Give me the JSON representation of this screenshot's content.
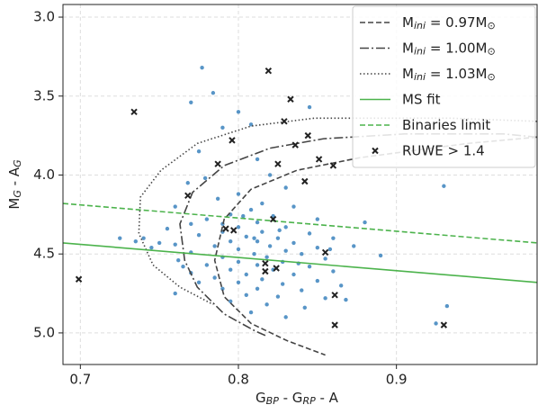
{
  "chart_data": {
    "type": "scatter",
    "xlabel": [
      "G",
      "BP",
      " - G",
      "RP",
      " - A"
    ],
    "ylabel": [
      "M",
      "G",
      " - A",
      "G"
    ],
    "xlim": [
      0.689,
      0.989
    ],
    "ylim": [
      5.2,
      2.92
    ],
    "xticks": [
      0.7,
      0.8,
      0.9
    ],
    "yticks": [
      {
        "value": 3,
        "label": "3.0"
      },
      3.5,
      {
        "value": 4,
        "label": "4.0"
      },
      4.5,
      {
        "value": 5,
        "label": "5.0"
      }
    ],
    "grid": true,
    "legend": "upper right",
    "series": [
      {
        "name": [
          "M",
          "ini",
          " = 0.97M",
          "⊙"
        ],
        "style": "dashed",
        "color": "#444444",
        "x": [
          0.989,
          0.945,
          0.877,
          0.837,
          0.808,
          0.791,
          0.785,
          0.791,
          0.808,
          0.831,
          0.855
        ],
        "y": [
          3.76,
          3.8,
          3.89,
          3.97,
          4.09,
          4.28,
          4.54,
          4.77,
          4.94,
          5.05,
          5.14
        ]
      },
      {
        "name": [
          "M",
          "ini",
          " = 1.00M",
          "⊙"
        ],
        "style": "dashdot",
        "color": "#444444",
        "x": [
          0.989,
          0.968,
          0.905,
          0.854,
          0.82,
          0.791,
          0.771,
          0.763,
          0.766,
          0.774,
          0.791,
          0.811,
          0.818
        ],
        "y": [
          3.76,
          3.74,
          3.74,
          3.77,
          3.83,
          3.94,
          4.11,
          4.31,
          4.54,
          4.71,
          4.88,
          4.99,
          5.02
        ]
      },
      {
        "name": [
          "M",
          "ini",
          " = 1.03M",
          "⊙"
        ],
        "style": "dotted",
        "color": "#444444",
        "x": [
          0.989,
          0.934,
          0.848,
          0.808,
          0.774,
          0.751,
          0.738,
          0.737,
          0.746,
          0.763,
          0.784
        ],
        "y": [
          3.66,
          3.64,
          3.64,
          3.69,
          3.8,
          3.97,
          4.14,
          4.37,
          4.57,
          4.71,
          4.82
        ]
      },
      {
        "name": [
          "MS fit"
        ],
        "style": "solid",
        "color": "#4cb34c",
        "x": [
          0.689,
          0.989
        ],
        "y": [
          4.43,
          4.68
        ]
      },
      {
        "name": [
          "Binaries limit"
        ],
        "style": "dashed",
        "color": "#4cb34c",
        "x": [
          0.689,
          0.989
        ],
        "y": [
          4.18,
          4.43
        ]
      },
      {
        "name": [
          "RUWE > 1.4"
        ],
        "style": "marker-x",
        "color": "#222222",
        "x": [
          0.699,
          0.734,
          0.819,
          0.833,
          0.829,
          0.796,
          0.787,
          0.836,
          0.844,
          0.825,
          0.851,
          0.86,
          0.842,
          0.768,
          0.822,
          0.792,
          0.797,
          0.855,
          0.817,
          0.817,
          0.824,
          0.861,
          0.861,
          0.93
        ],
        "y": [
          4.66,
          3.6,
          3.34,
          3.52,
          3.66,
          3.78,
          3.93,
          3.81,
          3.75,
          3.93,
          3.9,
          3.94,
          4.04,
          4.13,
          4.28,
          4.34,
          4.35,
          4.49,
          4.56,
          4.61,
          4.59,
          4.76,
          4.95,
          4.95
        ]
      },
      {
        "style": "marker-dot",
        "color": "#3b82bd",
        "x": [
          0.777,
          0.784,
          0.77,
          0.8,
          0.845,
          0.808,
          0.79,
          0.775,
          0.812,
          0.82,
          0.779,
          0.768,
          0.83,
          0.8,
          0.93,
          0.787,
          0.815,
          0.76,
          0.808,
          0.835,
          0.795,
          0.822,
          0.78,
          0.85,
          0.812,
          0.77,
          0.8,
          0.83,
          0.755,
          0.79,
          0.815,
          0.845,
          0.725,
          0.74,
          0.775,
          0.805,
          0.825,
          0.86,
          0.795,
          0.812,
          0.835,
          0.76,
          0.785,
          0.82,
          0.85,
          0.745,
          0.8,
          0.83,
          0.77,
          0.81,
          0.84,
          0.89,
          0.79,
          0.818,
          0.855,
          0.762,
          0.8,
          0.828,
          0.78,
          0.812,
          0.845,
          0.795,
          0.822,
          0.86,
          0.77,
          0.805,
          0.835,
          0.785,
          0.815,
          0.85,
          0.8,
          0.828,
          0.865,
          0.79,
          0.812,
          0.84,
          0.805,
          0.825,
          0.855,
          0.868,
          0.795,
          0.818,
          0.842,
          0.808,
          0.83,
          0.932,
          0.925,
          0.75,
          0.735,
          0.765,
          0.775,
          0.76,
          0.81,
          0.826,
          0.803,
          0.79,
          0.838,
          0.858,
          0.873,
          0.88
        ],
        "y": [
          3.32,
          3.48,
          3.54,
          3.6,
          3.57,
          3.68,
          3.7,
          3.85,
          3.9,
          4.0,
          4.02,
          4.05,
          4.08,
          4.12,
          4.07,
          4.15,
          4.18,
          4.2,
          4.22,
          4.2,
          4.25,
          4.26,
          4.28,
          4.28,
          4.3,
          4.31,
          4.33,
          4.33,
          4.34,
          4.36,
          4.36,
          4.37,
          4.4,
          4.4,
          4.38,
          4.39,
          4.4,
          4.4,
          4.42,
          4.42,
          4.43,
          4.44,
          4.45,
          4.45,
          4.46,
          4.46,
          4.47,
          4.48,
          4.49,
          4.5,
          4.5,
          4.51,
          4.52,
          4.52,
          4.53,
          4.54,
          4.55,
          4.55,
          4.57,
          4.57,
          4.58,
          4.6,
          4.6,
          4.61,
          4.62,
          4.63,
          4.63,
          4.65,
          4.66,
          4.67,
          4.68,
          4.69,
          4.7,
          4.72,
          4.72,
          4.73,
          4.76,
          4.77,
          4.78,
          4.79,
          4.8,
          4.82,
          4.84,
          4.87,
          4.9,
          4.83,
          4.94,
          4.43,
          4.42,
          4.58,
          4.68,
          4.75,
          4.4,
          4.35,
          4.26,
          4.31,
          4.56,
          4.47,
          4.45,
          4.3
        ]
      }
    ]
  }
}
